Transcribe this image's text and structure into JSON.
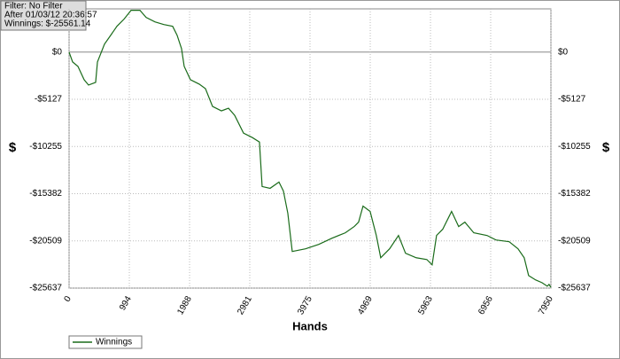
{
  "chart_data": {
    "type": "line",
    "annotations": [
      "Filter: No Filter",
      "After 01/03/12 20:36:57",
      "Winnings: $-25561.14"
    ],
    "x_label": "Hands",
    "y_label": "$",
    "x": [
      0,
      58,
      146,
      248,
      321,
      438,
      468,
      584,
      687,
      789,
      906,
      1023,
      1169,
      1271,
      1417,
      1563,
      1709,
      1782,
      1855,
      1899,
      2002,
      2148,
      2250,
      2367,
      2513,
      2630,
      2732,
      2878,
      3024,
      3141,
      3185,
      3317,
      3463,
      3536,
      3609,
      3682,
      3901,
      4120,
      4339,
      4558,
      4704,
      4777,
      4850,
      4967,
      5069,
      5142,
      5288,
      5435,
      5551,
      5727,
      5902,
      5990,
      6063,
      6165,
      6311,
      6428,
      6530,
      6677,
      6896,
      7042,
      7261,
      7407,
      7509,
      7582,
      7699,
      7802,
      7890,
      7919,
      7950
    ],
    "series": [
      {
        "name": "Winnings",
        "color": "#1a6b1a",
        "values": [
          0,
          -1064,
          -1547,
          -2998,
          -3578,
          -3288,
          -1064,
          870,
          1837,
          2804,
          3578,
          4545,
          4545,
          3771,
          3288,
          2998,
          2804,
          1837,
          387,
          -1547,
          -2998,
          -3481,
          -3965,
          -5899,
          -6383,
          -6092,
          -6866,
          -8800,
          -9283,
          -9767,
          -14602,
          -14795,
          -14118,
          -15085,
          -17502,
          -21661,
          -21371,
          -20888,
          -20211,
          -19630,
          -18953,
          -18470,
          -16729,
          -17309,
          -19920,
          -22338,
          -21371,
          -19920,
          -21854,
          -22338,
          -22532,
          -23112,
          -19920,
          -19243,
          -17309,
          -18953,
          -18470,
          -19630,
          -19920,
          -20404,
          -20597,
          -21371,
          -22338,
          -24272,
          -24756,
          -25046,
          -25433,
          -25240,
          -25561
        ]
      }
    ],
    "xlim": [
      0,
      7950
    ],
    "ylim": [
      -25637,
      4700
    ],
    "xticks": [
      0,
      994,
      1988,
      2981,
      3975,
      4969,
      5963,
      6956,
      7950
    ],
    "yticks": [
      {
        "value": 0,
        "label": "$0"
      },
      {
        "value": -5127,
        "label": "-$5127"
      },
      {
        "value": -10255,
        "label": "-$10255"
      },
      {
        "value": -15382,
        "label": "-$15382"
      },
      {
        "value": -20509,
        "label": "-$20509"
      },
      {
        "value": -25637,
        "label": "-$25637"
      }
    ],
    "grid": true,
    "legend": "bottom-left"
  }
}
